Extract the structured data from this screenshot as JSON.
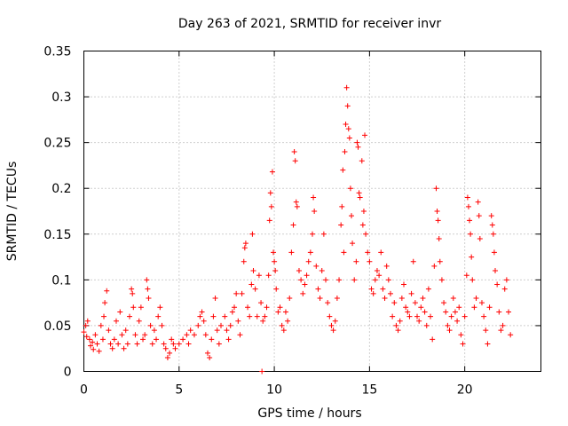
{
  "chart_data": {
    "type": "scatter",
    "title": "Day 263 of 2021, SRMTID for receiver invr",
    "xlabel": "GPS time / hours",
    "ylabel": "SRMTID / TECUs",
    "xlim": [
      0,
      24
    ],
    "ylim": [
      0,
      0.35
    ],
    "xticks": [
      0,
      5,
      10,
      15,
      20
    ],
    "xtick_labels": [
      "0",
      "5",
      "10",
      "15",
      "20"
    ],
    "yticks": [
      0,
      0.05,
      0.1,
      0.15,
      0.2,
      0.25,
      0.3,
      0.35
    ],
    "ytick_labels": [
      "0",
      "0.05",
      "0.1",
      "0.15",
      "0.2",
      "0.25",
      "0.3",
      "0.35"
    ],
    "grid": true,
    "marker": "plus",
    "color": "#ff0000",
    "series": [
      {
        "name": "SRMTID",
        "points": [
          [
            0.0,
            0.043
          ],
          [
            0.1,
            0.05
          ],
          [
            0.15,
            0.038
          ],
          [
            0.2,
            0.055
          ],
          [
            0.3,
            0.035
          ],
          [
            0.35,
            0.028
          ],
          [
            0.45,
            0.032
          ],
          [
            0.5,
            0.024
          ],
          [
            0.6,
            0.04
          ],
          [
            0.7,
            0.03
          ],
          [
            0.8,
            0.022
          ],
          [
            0.9,
            0.05
          ],
          [
            1.0,
            0.035
          ],
          [
            1.05,
            0.06
          ],
          [
            1.1,
            0.075
          ],
          [
            1.2,
            0.088
          ],
          [
            1.3,
            0.045
          ],
          [
            1.4,
            0.03
          ],
          [
            1.5,
            0.025
          ],
          [
            1.6,
            0.035
          ],
          [
            1.7,
            0.055
          ],
          [
            1.8,
            0.03
          ],
          [
            1.9,
            0.065
          ],
          [
            2.0,
            0.04
          ],
          [
            2.1,
            0.025
          ],
          [
            2.2,
            0.045
          ],
          [
            2.3,
            0.03
          ],
          [
            2.4,
            0.06
          ],
          [
            2.5,
            0.09
          ],
          [
            2.55,
            0.085
          ],
          [
            2.6,
            0.07
          ],
          [
            2.7,
            0.04
          ],
          [
            2.8,
            0.03
          ],
          [
            2.9,
            0.055
          ],
          [
            3.0,
            0.07
          ],
          [
            3.1,
            0.035
          ],
          [
            3.2,
            0.04
          ],
          [
            3.3,
            0.1
          ],
          [
            3.35,
            0.09
          ],
          [
            3.4,
            0.08
          ],
          [
            3.5,
            0.05
          ],
          [
            3.6,
            0.03
          ],
          [
            3.7,
            0.045
          ],
          [
            3.8,
            0.035
          ],
          [
            3.9,
            0.06
          ],
          [
            4.0,
            0.07
          ],
          [
            4.1,
            0.05
          ],
          [
            4.2,
            0.03
          ],
          [
            4.3,
            0.025
          ],
          [
            4.4,
            0.015
          ],
          [
            4.5,
            0.02
          ],
          [
            4.6,
            0.035
          ],
          [
            4.7,
            0.03
          ],
          [
            4.8,
            0.025
          ],
          [
            5.0,
            0.03
          ],
          [
            5.2,
            0.035
          ],
          [
            5.4,
            0.04
          ],
          [
            5.5,
            0.03
          ],
          [
            5.6,
            0.045
          ],
          [
            5.8,
            0.04
          ],
          [
            6.0,
            0.05
          ],
          [
            6.1,
            0.06
          ],
          [
            6.2,
            0.065
          ],
          [
            6.3,
            0.055
          ],
          [
            6.4,
            0.04
          ],
          [
            6.5,
            0.02
          ],
          [
            6.6,
            0.015
          ],
          [
            6.7,
            0.035
          ],
          [
            6.8,
            0.06
          ],
          [
            6.9,
            0.08
          ],
          [
            7.0,
            0.045
          ],
          [
            7.1,
            0.03
          ],
          [
            7.2,
            0.05
          ],
          [
            7.4,
            0.06
          ],
          [
            7.5,
            0.045
          ],
          [
            7.6,
            0.035
          ],
          [
            7.7,
            0.05
          ],
          [
            7.8,
            0.065
          ],
          [
            7.9,
            0.07
          ],
          [
            8.0,
            0.085
          ],
          [
            8.1,
            0.055
          ],
          [
            8.2,
            0.04
          ],
          [
            8.3,
            0.085
          ],
          [
            8.4,
            0.12
          ],
          [
            8.45,
            0.135
          ],
          [
            8.5,
            0.14
          ],
          [
            8.6,
            0.07
          ],
          [
            8.7,
            0.06
          ],
          [
            8.8,
            0.095
          ],
          [
            8.85,
            0.15
          ],
          [
            8.9,
            0.11
          ],
          [
            9.0,
            0.09
          ],
          [
            9.1,
            0.06
          ],
          [
            9.2,
            0.105
          ],
          [
            9.3,
            0.075
          ],
          [
            9.35,
            0.0
          ],
          [
            9.4,
            0.055
          ],
          [
            9.5,
            0.06
          ],
          [
            9.6,
            0.07
          ],
          [
            9.7,
            0.105
          ],
          [
            9.75,
            0.165
          ],
          [
            9.8,
            0.195
          ],
          [
            9.85,
            0.18
          ],
          [
            9.9,
            0.218
          ],
          [
            9.95,
            0.13
          ],
          [
            10.0,
            0.12
          ],
          [
            10.05,
            0.11
          ],
          [
            10.1,
            0.09
          ],
          [
            10.2,
            0.065
          ],
          [
            10.3,
            0.07
          ],
          [
            10.4,
            0.05
          ],
          [
            10.5,
            0.045
          ],
          [
            10.6,
            0.065
          ],
          [
            10.7,
            0.055
          ],
          [
            10.8,
            0.08
          ],
          [
            10.9,
            0.13
          ],
          [
            11.0,
            0.16
          ],
          [
            11.05,
            0.24
          ],
          [
            11.1,
            0.23
          ],
          [
            11.15,
            0.185
          ],
          [
            11.2,
            0.18
          ],
          [
            11.3,
            0.11
          ],
          [
            11.4,
            0.1
          ],
          [
            11.5,
            0.085
          ],
          [
            11.6,
            0.095
          ],
          [
            11.7,
            0.105
          ],
          [
            11.8,
            0.12
          ],
          [
            11.9,
            0.13
          ],
          [
            12.0,
            0.15
          ],
          [
            12.05,
            0.19
          ],
          [
            12.1,
            0.175
          ],
          [
            12.2,
            0.115
          ],
          [
            12.3,
            0.09
          ],
          [
            12.4,
            0.08
          ],
          [
            12.5,
            0.11
          ],
          [
            12.6,
            0.15
          ],
          [
            12.7,
            0.1
          ],
          [
            12.8,
            0.075
          ],
          [
            12.9,
            0.06
          ],
          [
            13.0,
            0.05
          ],
          [
            13.1,
            0.045
          ],
          [
            13.2,
            0.055
          ],
          [
            13.3,
            0.08
          ],
          [
            13.4,
            0.1
          ],
          [
            13.5,
            0.16
          ],
          [
            13.55,
            0.18
          ],
          [
            13.6,
            0.22
          ],
          [
            13.65,
            0.13
          ],
          [
            13.7,
            0.24
          ],
          [
            13.75,
            0.27
          ],
          [
            13.8,
            0.31
          ],
          [
            13.85,
            0.29
          ],
          [
            13.9,
            0.265
          ],
          [
            13.95,
            0.255
          ],
          [
            14.0,
            0.2
          ],
          [
            14.05,
            0.17
          ],
          [
            14.1,
            0.14
          ],
          [
            14.2,
            0.1
          ],
          [
            14.3,
            0.12
          ],
          [
            14.35,
            0.25
          ],
          [
            14.4,
            0.245
          ],
          [
            14.45,
            0.195
          ],
          [
            14.5,
            0.19
          ],
          [
            14.6,
            0.23
          ],
          [
            14.65,
            0.16
          ],
          [
            14.7,
            0.175
          ],
          [
            14.75,
            0.258
          ],
          [
            14.8,
            0.15
          ],
          [
            14.9,
            0.13
          ],
          [
            15.0,
            0.12
          ],
          [
            15.1,
            0.09
          ],
          [
            15.2,
            0.085
          ],
          [
            15.3,
            0.1
          ],
          [
            15.4,
            0.11
          ],
          [
            15.5,
            0.105
          ],
          [
            15.6,
            0.13
          ],
          [
            15.7,
            0.09
          ],
          [
            15.8,
            0.08
          ],
          [
            15.9,
            0.115
          ],
          [
            16.0,
            0.1
          ],
          [
            16.1,
            0.085
          ],
          [
            16.2,
            0.06
          ],
          [
            16.3,
            0.075
          ],
          [
            16.4,
            0.05
          ],
          [
            16.5,
            0.045
          ],
          [
            16.6,
            0.055
          ],
          [
            16.7,
            0.08
          ],
          [
            16.8,
            0.095
          ],
          [
            16.9,
            0.07
          ],
          [
            17.0,
            0.065
          ],
          [
            17.1,
            0.06
          ],
          [
            17.2,
            0.085
          ],
          [
            17.3,
            0.12
          ],
          [
            17.4,
            0.075
          ],
          [
            17.5,
            0.06
          ],
          [
            17.6,
            0.055
          ],
          [
            17.7,
            0.07
          ],
          [
            17.8,
            0.08
          ],
          [
            17.9,
            0.065
          ],
          [
            18.0,
            0.05
          ],
          [
            18.1,
            0.09
          ],
          [
            18.2,
            0.06
          ],
          [
            18.3,
            0.035
          ],
          [
            18.4,
            0.115
          ],
          [
            18.5,
            0.2
          ],
          [
            18.55,
            0.175
          ],
          [
            18.6,
            0.165
          ],
          [
            18.65,
            0.145
          ],
          [
            18.7,
            0.12
          ],
          [
            18.8,
            0.1
          ],
          [
            18.9,
            0.075
          ],
          [
            19.0,
            0.065
          ],
          [
            19.1,
            0.05
          ],
          [
            19.2,
            0.045
          ],
          [
            19.3,
            0.06
          ],
          [
            19.4,
            0.08
          ],
          [
            19.5,
            0.065
          ],
          [
            19.6,
            0.055
          ],
          [
            19.7,
            0.07
          ],
          [
            19.8,
            0.04
          ],
          [
            19.9,
            0.03
          ],
          [
            20.0,
            0.06
          ],
          [
            20.1,
            0.105
          ],
          [
            20.15,
            0.19
          ],
          [
            20.2,
            0.18
          ],
          [
            20.25,
            0.165
          ],
          [
            20.3,
            0.15
          ],
          [
            20.35,
            0.125
          ],
          [
            20.4,
            0.1
          ],
          [
            20.5,
            0.07
          ],
          [
            20.6,
            0.08
          ],
          [
            20.7,
            0.185
          ],
          [
            20.75,
            0.17
          ],
          [
            20.8,
            0.145
          ],
          [
            20.9,
            0.075
          ],
          [
            21.0,
            0.06
          ],
          [
            21.1,
            0.045
          ],
          [
            21.2,
            0.03
          ],
          [
            21.3,
            0.07
          ],
          [
            21.4,
            0.17
          ],
          [
            21.45,
            0.16
          ],
          [
            21.5,
            0.15
          ],
          [
            21.55,
            0.13
          ],
          [
            21.6,
            0.11
          ],
          [
            21.7,
            0.095
          ],
          [
            21.8,
            0.065
          ],
          [
            21.9,
            0.045
          ],
          [
            22.0,
            0.05
          ],
          [
            22.1,
            0.09
          ],
          [
            22.2,
            0.1
          ],
          [
            22.3,
            0.065
          ],
          [
            22.4,
            0.04
          ]
        ]
      }
    ]
  }
}
